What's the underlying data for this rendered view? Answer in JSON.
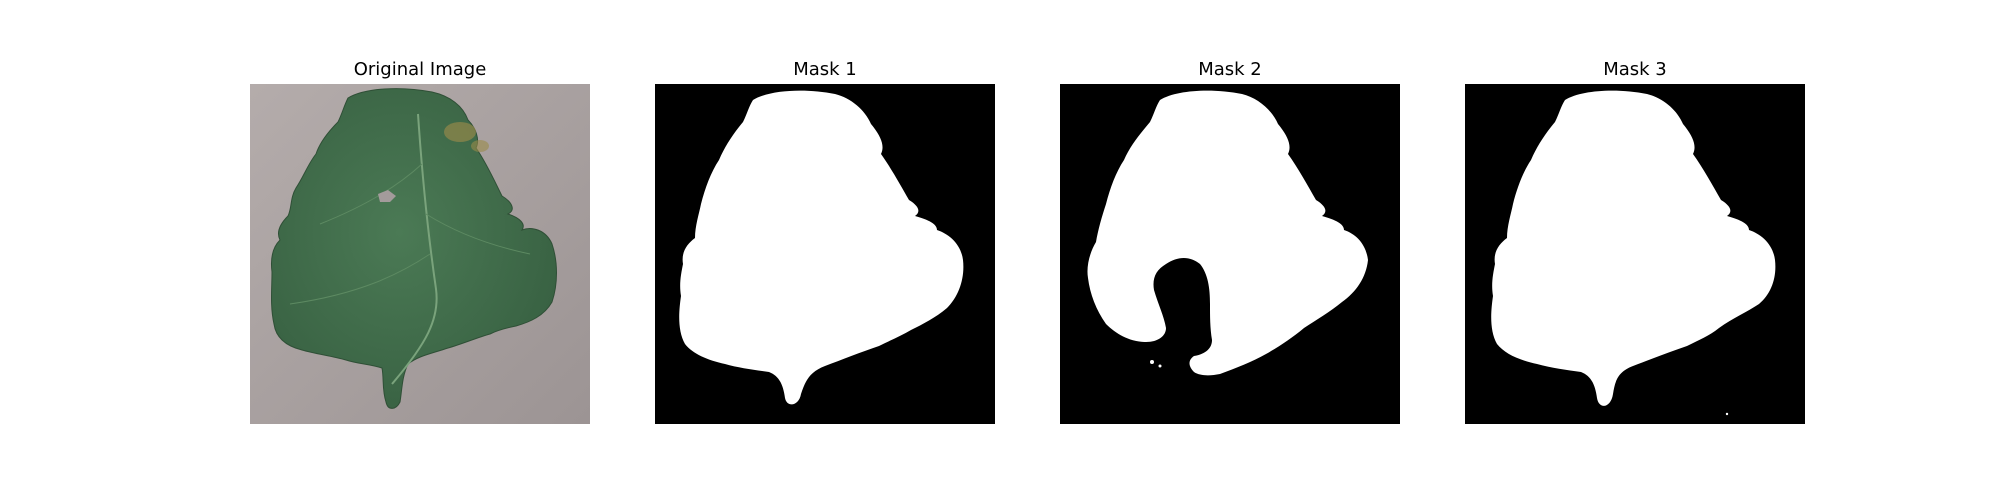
{
  "panels": [
    {
      "title": "Original Image",
      "kind": "photo"
    },
    {
      "title": "Mask 1",
      "kind": "mask"
    },
    {
      "title": "Mask 2",
      "kind": "mask"
    },
    {
      "title": "Mask 3",
      "kind": "mask"
    }
  ],
  "colors": {
    "background": "#ffffff",
    "mask_background": "#000000",
    "mask_foreground": "#ffffff",
    "ground": "#a79f9f",
    "leaf": "#3f6b48"
  }
}
